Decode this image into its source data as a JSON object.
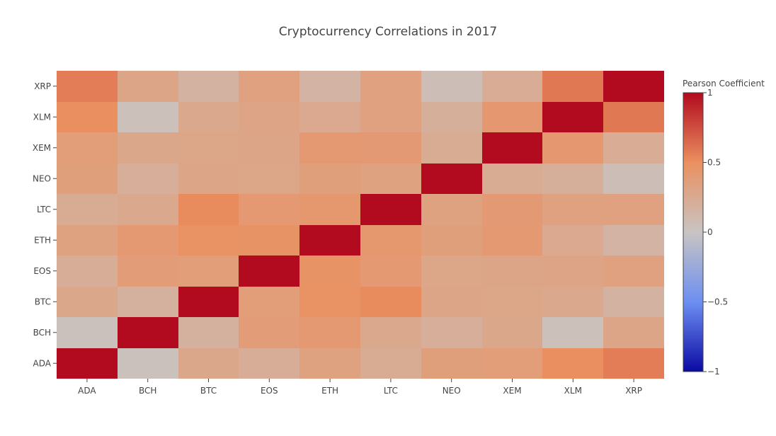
{
  "chart_data": {
    "type": "heatmap",
    "title": "Cryptocurrency Correlations in 2017",
    "x_categories": [
      "ADA",
      "BCH",
      "BTC",
      "EOS",
      "ETH",
      "LTC",
      "NEO",
      "XEM",
      "XLM",
      "XRP"
    ],
    "y_categories": [
      "ADA",
      "BCH",
      "BTC",
      "EOS",
      "ETH",
      "LTC",
      "NEO",
      "XEM",
      "XLM",
      "XRP"
    ],
    "z": [
      [
        1.0,
        0.03,
        0.28,
        0.22,
        0.33,
        0.24,
        0.36,
        0.37,
        0.5,
        0.57
      ],
      [
        0.03,
        1.0,
        0.18,
        0.38,
        0.41,
        0.27,
        0.21,
        0.28,
        0.04,
        0.3
      ],
      [
        0.28,
        0.18,
        1.0,
        0.37,
        0.48,
        0.52,
        0.3,
        0.29,
        0.27,
        0.17
      ],
      [
        0.22,
        0.38,
        0.37,
        1.0,
        0.47,
        0.41,
        0.29,
        0.3,
        0.31,
        0.34
      ],
      [
        0.33,
        0.41,
        0.48,
        0.47,
        1.0,
        0.43,
        0.36,
        0.41,
        0.26,
        0.16
      ],
      [
        0.24,
        0.27,
        0.52,
        0.41,
        0.43,
        1.0,
        0.33,
        0.4,
        0.34,
        0.34
      ],
      [
        0.36,
        0.21,
        0.3,
        0.29,
        0.36,
        0.33,
        1.0,
        0.24,
        0.2,
        0.06
      ],
      [
        0.37,
        0.28,
        0.29,
        0.3,
        0.41,
        0.4,
        0.24,
        1.0,
        0.42,
        0.23
      ],
      [
        0.5,
        0.04,
        0.27,
        0.31,
        0.26,
        0.34,
        0.2,
        0.42,
        1.0,
        0.59
      ],
      [
        0.57,
        0.3,
        0.17,
        0.34,
        0.16,
        0.34,
        0.06,
        0.23,
        0.59,
        1.0
      ]
    ],
    "zmin": -1,
    "zmax": 1,
    "colorscale_name": "coolwarm",
    "colorscale": [
      [
        0.0,
        "#0a0aa3"
      ],
      [
        0.25,
        "#6d8ff2"
      ],
      [
        0.5,
        "#c8c4c2"
      ],
      [
        0.75,
        "#ea9060"
      ],
      [
        1.0,
        "#b20a1e"
      ]
    ],
    "colorbar": {
      "title": "Pearson Coefficient",
      "ticks": [
        1,
        0.5,
        0,
        -0.5,
        -1
      ],
      "tick_labels": [
        "1",
        "0.5",
        "0",
        "−0.5",
        "−1"
      ]
    }
  }
}
